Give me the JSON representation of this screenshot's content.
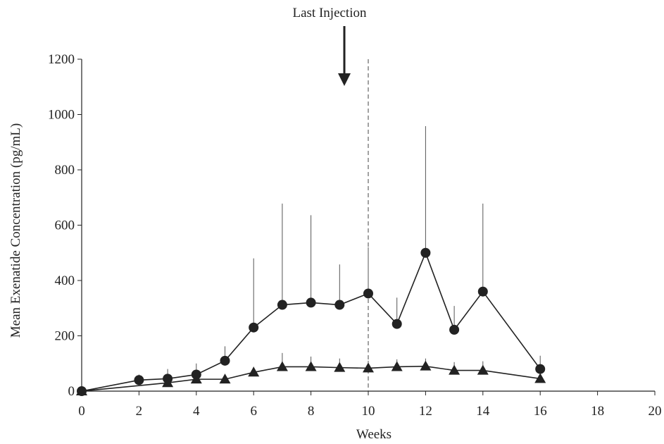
{
  "chart_data": {
    "type": "line",
    "annotation": "Last Injection",
    "annotation_x": 9,
    "reference_line_x": 10,
    "xlabel": "Weeks",
    "ylabel": "Mean Exenatide Concentration (pg/mL)",
    "xlim": [
      0,
      20
    ],
    "ylim": [
      0,
      1200
    ],
    "x_ticks": [
      0,
      2,
      4,
      6,
      8,
      10,
      12,
      14,
      16,
      18,
      20
    ],
    "y_ticks": [
      0,
      200,
      400,
      600,
      800,
      1000,
      1200
    ],
    "grid": false,
    "series": [
      {
        "marker": "circle",
        "color": "#222222",
        "x": [
          0,
          2,
          3,
          4,
          5,
          6,
          7,
          8,
          9,
          10,
          11,
          12,
          13,
          14,
          16
        ],
        "y": [
          0,
          40,
          45,
          60,
          110,
          230,
          312,
          320,
          312,
          353,
          243,
          500,
          222,
          360,
          80
        ],
        "error_upper": [
          0,
          60,
          80,
          100,
          162,
          480,
          678,
          636,
          458,
          520,
          338,
          958,
          308,
          678,
          128
        ]
      },
      {
        "marker": "triangle",
        "color": "#222222",
        "x": [
          0,
          3,
          4,
          5,
          6,
          7,
          8,
          9,
          10,
          11,
          12,
          13,
          14,
          16
        ],
        "y": [
          0,
          30,
          43,
          43,
          68,
          88,
          88,
          85,
          83,
          88,
          90,
          75,
          75,
          45
        ],
        "error_upper": [
          0,
          38,
          64,
          55,
          88,
          138,
          125,
          118,
          110,
          115,
          118,
          105,
          108,
          65
        ]
      }
    ]
  }
}
